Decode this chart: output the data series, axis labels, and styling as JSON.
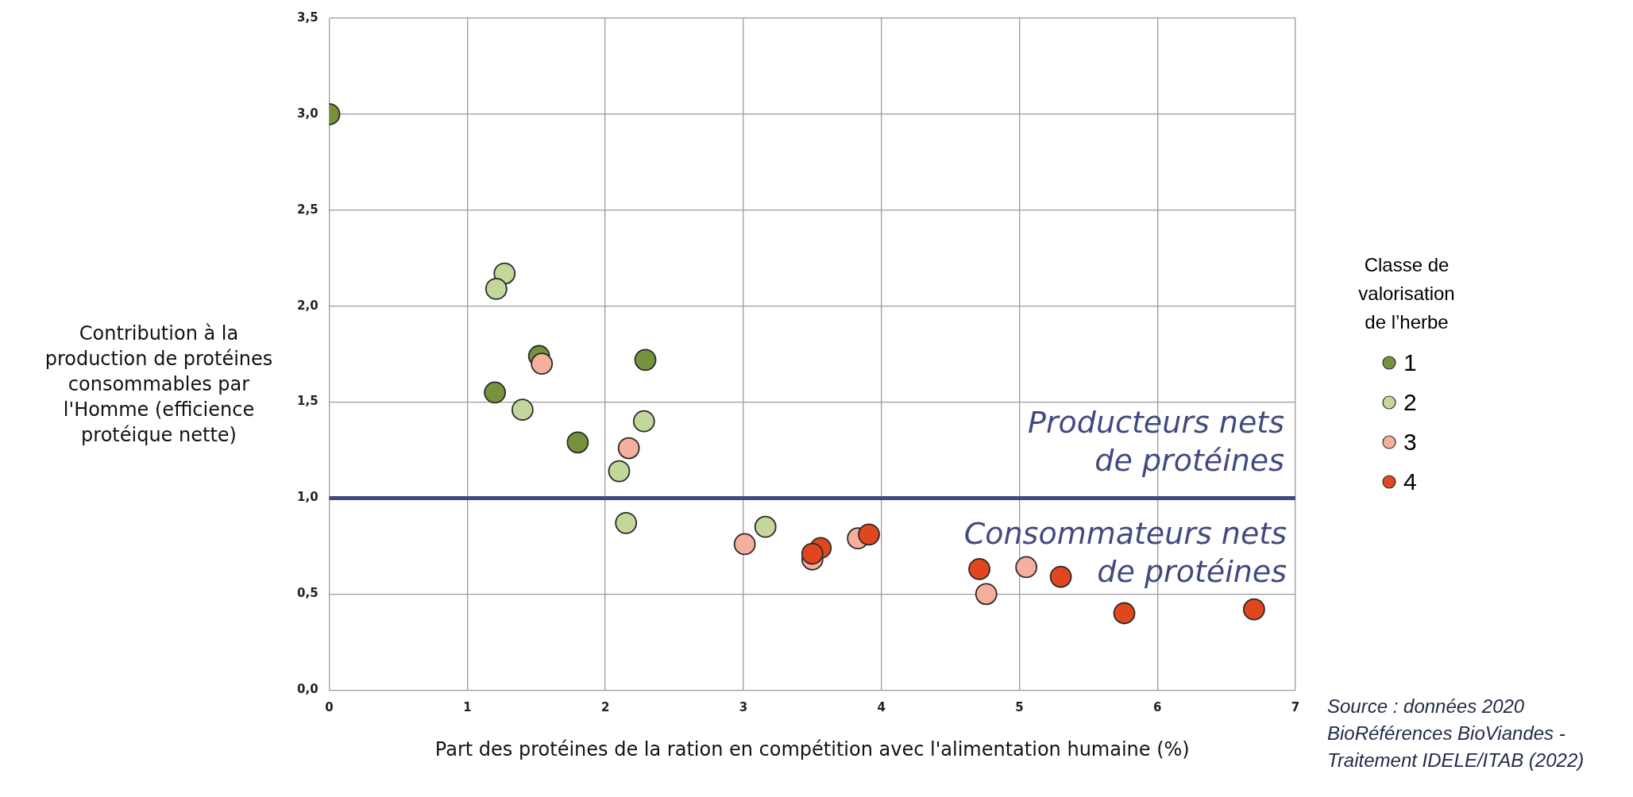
{
  "chart_data": {
    "type": "scatter",
    "xlabel": "Part des protéines de la ration en compétition avec l'alimentation humaine (%)",
    "ylabel": "Contribution à la production de protéines consommables par l'Homme (efficience protéique nette)",
    "legend_title": "Classe de valorisation de l’herbe",
    "legend": "right",
    "grid": true,
    "marker": "circle",
    "xlim": [
      0,
      7
    ],
    "xticks": [
      0,
      1,
      2,
      3,
      4,
      5,
      6,
      7
    ],
    "ylim": [
      0,
      3.5
    ],
    "yticks": [
      {
        "value": 0,
        "label": "0,0"
      },
      {
        "value": 0.5,
        "label": "0,5"
      },
      {
        "value": 1,
        "label": "1,0"
      },
      {
        "value": 1.5,
        "label": "1,5"
      },
      {
        "value": 2,
        "label": "2,0"
      },
      {
        "value": 2.5,
        "label": "2,5"
      },
      {
        "value": 3,
        "label": "3,0"
      },
      {
        "value": 3.5,
        "label": "3,5"
      }
    ],
    "series": [
      {
        "name": "1",
        "color": "#76923c",
        "x": [
          0,
          1.52,
          1.2,
          2.29,
          1.8
        ],
        "values": [
          3.0,
          1.74,
          1.55,
          1.72,
          1.29
        ]
      },
      {
        "name": "2",
        "color": "#c4d79b",
        "x": [
          1.27,
          1.21,
          1.4,
          2.28,
          2.1,
          2.15,
          3.16
        ],
        "values": [
          2.17,
          2.09,
          1.46,
          1.4,
          1.14,
          0.87,
          0.85
        ]
      },
      {
        "name": "3",
        "color": "#f4b09c",
        "x": [
          1.54,
          2.17,
          3.01,
          3.5,
          3.83,
          4.76,
          5.05
        ],
        "values": [
          1.7,
          1.26,
          0.76,
          0.68,
          0.79,
          0.5,
          0.64
        ]
      },
      {
        "name": "4",
        "color": "#e0471f",
        "x": [
          3.56,
          3.5,
          3.91,
          4.71,
          5.3,
          5.76,
          6.7
        ],
        "values": [
          0.74,
          0.71,
          0.81,
          0.63,
          0.59,
          0.4,
          0.42
        ]
      }
    ],
    "ref_lines": [
      {
        "axis": "y",
        "value": 1,
        "color": "#404a80"
      }
    ],
    "annotations": [
      "Producteurs nets de protéines",
      "Consommateurs nets de protéines",
      "Source : données 2020 BioRéférences BioViandes - Traitement IDELE/ITAB (2022)"
    ]
  }
}
